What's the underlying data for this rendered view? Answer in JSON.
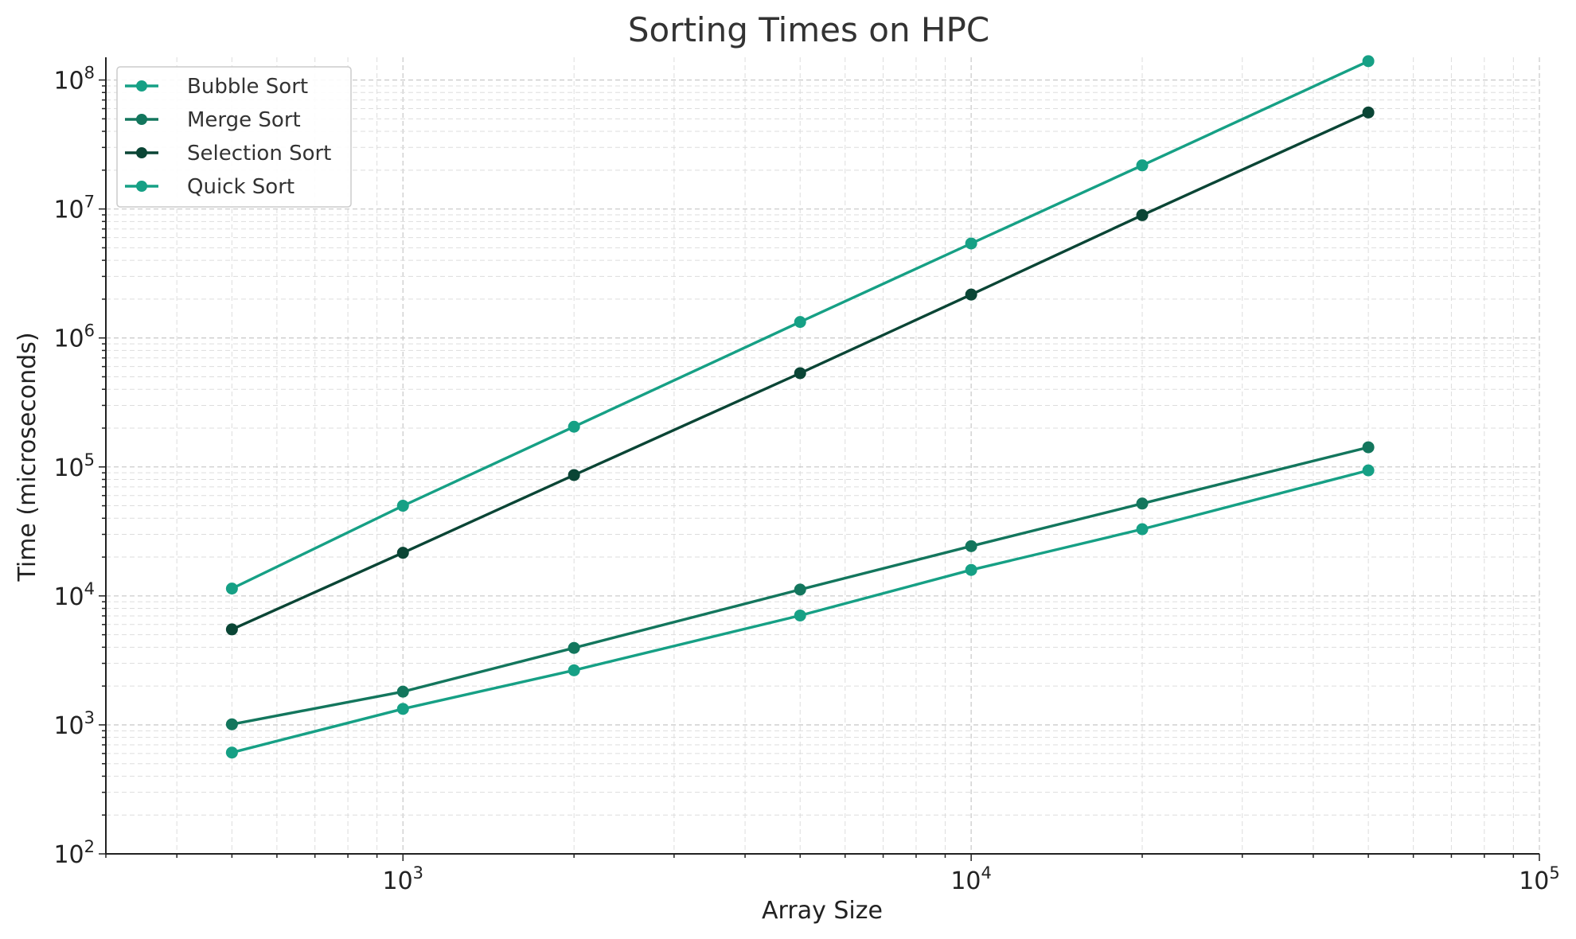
{
  "chart_data": {
    "type": "line",
    "title": "Sorting Times on HPC",
    "xlabel": "Array Size",
    "ylabel": "Time (microseconds)",
    "xscale": "log",
    "yscale": "log",
    "xlim": [
      300,
      100000
    ],
    "ylim": [
      100,
      150000000
    ],
    "grid": true,
    "legend_position": "top-left",
    "x_ticks": [
      {
        "base": "10",
        "exp": "3",
        "value": 1000
      },
      {
        "base": "10",
        "exp": "4",
        "value": 10000
      },
      {
        "base": "10",
        "exp": "5",
        "value": 100000
      }
    ],
    "y_ticks": [
      {
        "base": "10",
        "exp": "2",
        "value": 100
      },
      {
        "base": "10",
        "exp": "3",
        "value": 1000
      },
      {
        "base": "10",
        "exp": "4",
        "value": 10000
      },
      {
        "base": "10",
        "exp": "5",
        "value": 100000
      },
      {
        "base": "10",
        "exp": "6",
        "value": 1000000
      },
      {
        "base": "10",
        "exp": "7",
        "value": 10000000
      },
      {
        "base": "10",
        "exp": "8",
        "value": 100000000
      }
    ],
    "x": [
      500,
      1000,
      2000,
      5000,
      10000,
      20000,
      50000
    ],
    "series": [
      {
        "name": "Bubble Sort",
        "color": "#16a085",
        "values": [
          11400,
          50000,
          205000,
          1330000,
          5400000,
          21800000,
          140000000
        ]
      },
      {
        "name": "Merge Sort",
        "color": "#13765d",
        "values": [
          1010,
          1810,
          3950,
          11200,
          24300,
          52000,
          142000
        ]
      },
      {
        "name": "Selection Sort",
        "color": "#0a4535",
        "values": [
          5500,
          21600,
          86500,
          533000,
          2170000,
          8950000,
          56000000
        ]
      },
      {
        "name": "Quick Sort",
        "color": "#16a085",
        "values": [
          610,
          1330,
          2650,
          7050,
          15900,
          32900,
          94000
        ]
      }
    ]
  }
}
